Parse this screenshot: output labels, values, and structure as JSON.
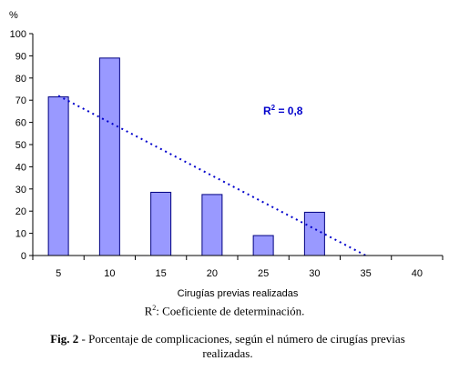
{
  "chart_data": {
    "type": "bar",
    "categories": [
      "5",
      "10",
      "15",
      "20",
      "25",
      "30",
      "35",
      "40"
    ],
    "values": [
      71.5,
      89,
      28.5,
      27.5,
      9,
      19.5,
      null,
      null
    ],
    "ylabel": "%",
    "xlabel": "Cirugías previas realizadas",
    "ylim": [
      0,
      100
    ],
    "yticks": [
      0,
      10,
      20,
      30,
      40,
      50,
      60,
      70,
      80,
      90,
      100
    ],
    "trendline": {
      "type": "linear",
      "style": "dotted",
      "color": "#0000cc",
      "start": {
        "x": "5",
        "y": 72
      },
      "end": {
        "x": "35",
        "y": 0
      },
      "r2_label_main": "R",
      "r2_label_sup": "2",
      "r2_label_rest": " = 0,8"
    },
    "bar_fill": "#9999ff",
    "bar_stroke": "#000080"
  },
  "note": {
    "prefix": "R",
    "sup": "2",
    "text": ": Coeficiente de determinación."
  },
  "caption": {
    "bold": "Fig. 2",
    "text": " - Porcentaje de complicaciones, según el número de cirugías previas realizadas."
  }
}
